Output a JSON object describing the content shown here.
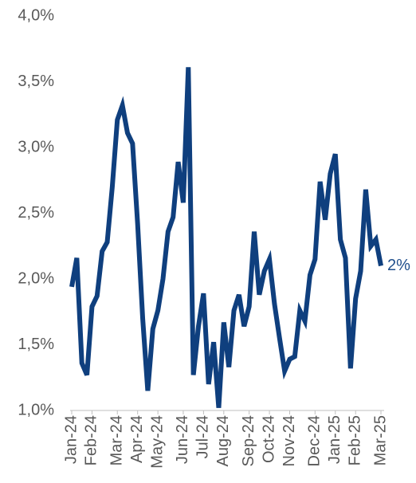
{
  "chart_data": {
    "type": "line",
    "categories": [
      "Jan-24",
      null,
      null,
      null,
      "Feb-24",
      null,
      null,
      null,
      null,
      "Mar-24",
      null,
      null,
      null,
      "Apr-24",
      null,
      null,
      null,
      "May-24",
      null,
      null,
      null,
      null,
      "Jun-24",
      null,
      null,
      null,
      "Jul-24",
      null,
      null,
      null,
      "Aug-24",
      null,
      null,
      null,
      null,
      "Sep-24",
      null,
      null,
      null,
      "Oct-24",
      null,
      null,
      null,
      "Nov-24",
      null,
      null,
      null,
      null,
      "Dec-24",
      null,
      null,
      null,
      "Jan-25",
      null,
      null,
      null,
      "Feb-25",
      null,
      null,
      null,
      null,
      "Mar-25"
    ],
    "series": [
      {
        "name": null,
        "color": "#0f3f7e",
        "values": [
          1.94,
          2.16,
          1.36,
          1.27,
          1.79,
          1.87,
          2.21,
          2.28,
          2.7,
          3.21,
          3.32,
          3.11,
          3.03,
          2.42,
          1.7,
          1.15,
          1.62,
          1.76,
          2.0,
          2.36,
          2.47,
          2.89,
          2.58,
          3.61,
          1.27,
          1.64,
          1.89,
          1.2,
          1.52,
          1.02,
          1.67,
          1.33,
          1.76,
          1.88,
          1.64,
          1.79,
          2.36,
          1.88,
          2.06,
          2.15,
          1.81,
          1.55,
          1.3,
          1.39,
          1.41,
          1.76,
          1.68,
          2.03,
          2.15,
          2.74,
          2.45,
          2.8,
          2.95,
          2.3,
          2.16,
          1.32,
          1.85,
          2.06,
          2.68,
          2.25,
          2.3,
          2.1
        ]
      }
    ],
    "annotation": "2%",
    "ylim": [
      1.0,
      4.0
    ],
    "yticks": [
      {
        "value": 1.0,
        "label": "1,0%"
      },
      {
        "value": 1.5,
        "label": "1,5%"
      },
      {
        "value": 2.0,
        "label": "2,0%"
      },
      {
        "value": 2.5,
        "label": "2,5%"
      },
      {
        "value": 3.0,
        "label": "3,0%"
      },
      {
        "value": 3.5,
        "label": "3,5%"
      },
      {
        "value": 4.0,
        "label": "4,0%"
      }
    ],
    "grid": false
  }
}
